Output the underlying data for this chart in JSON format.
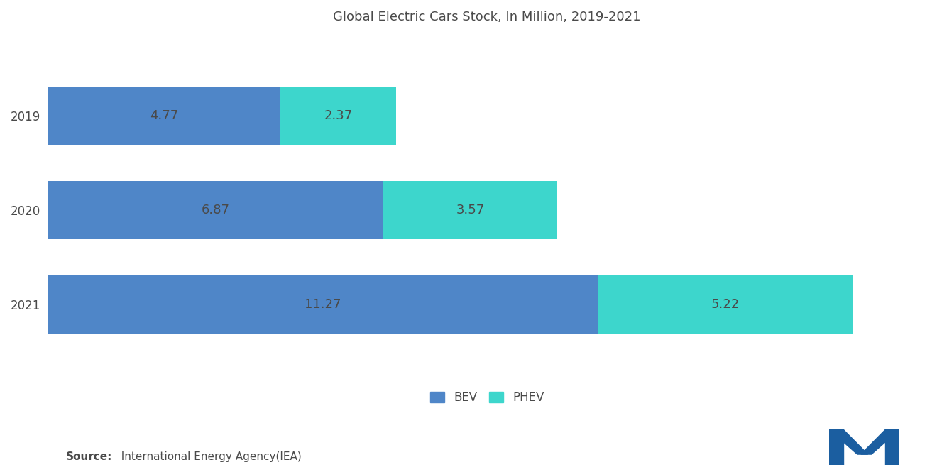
{
  "title": "Global Electric Cars Stock, In Million, 2019-2021",
  "years": [
    "2019",
    "2020",
    "2021"
  ],
  "bev": [
    4.77,
    6.87,
    11.27
  ],
  "phev": [
    2.37,
    3.57,
    5.22
  ],
  "bev_color": "#4F86C8",
  "phev_color": "#3DD6CC",
  "bar_height": 0.62,
  "background_color": "#FFFFFF",
  "text_color": "#4A4A4A",
  "source_bold": "Source:",
  "source_rest": "  International Energy Agency(IEA)",
  "legend_bev": "BEV",
  "legend_phev": "PHEV",
  "xlim": [
    0,
    18
  ],
  "label_fontsize": 13,
  "title_fontsize": 13,
  "tick_fontsize": 12,
  "source_fontsize": 11,
  "logo_color": "#1B5EA0"
}
